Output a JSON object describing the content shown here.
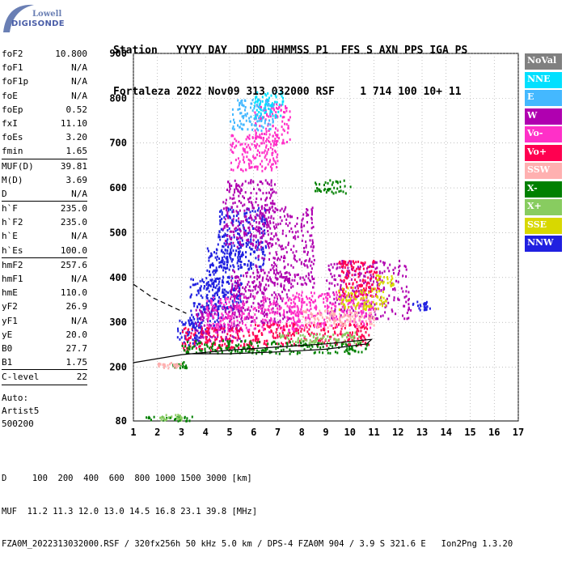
{
  "logo": {
    "line1": "Lowell",
    "line2": "DIGISONDE"
  },
  "header": {
    "line1": "Station   YYYY DAY   DDD HHMMSS P1  FFS S AXN PPS IGA PS",
    "line2": "Fortaleza 2022 Nov09 313 032000 RSF    1 714 100 10+ 11"
  },
  "params": [
    {
      "label": "foF2",
      "value": "10.800"
    },
    {
      "label": "foF1",
      "value": "N/A"
    },
    {
      "label": "foF1p",
      "value": "N/A"
    },
    {
      "label": "foE",
      "value": "N/A"
    },
    {
      "label": "foEp",
      "value": "0.52"
    },
    {
      "label": "fxI",
      "value": "11.10"
    },
    {
      "label": "foEs",
      "value": "3.20"
    },
    {
      "label": "fmin",
      "value": "1.65"
    },
    {
      "sep": true
    },
    {
      "label": "MUF(D)",
      "value": "39.81"
    },
    {
      "label": "M(D)",
      "value": "3.69"
    },
    {
      "label": "D",
      "value": "N/A"
    },
    {
      "sep": true
    },
    {
      "label": "h`F",
      "value": "235.0"
    },
    {
      "label": "h`F2",
      "value": "235.0"
    },
    {
      "label": "h`E",
      "value": "N/A"
    },
    {
      "label": "h`Es",
      "value": "100.0"
    },
    {
      "sep": true
    },
    {
      "label": "hmF2",
      "value": "257.6"
    },
    {
      "label": "hmF1",
      "value": "N/A"
    },
    {
      "label": "hmE",
      "value": "110.0"
    },
    {
      "label": "yF2",
      "value": "26.9"
    },
    {
      "label": "yF1",
      "value": "N/A"
    },
    {
      "label": "yE",
      "value": "20.0"
    },
    {
      "label": "B0",
      "value": "27.7"
    },
    {
      "label": "B1",
      "value": "1.75"
    },
    {
      "sep": true
    },
    {
      "label": "C-level",
      "value": "22"
    },
    {
      "sep": true
    }
  ],
  "auto": {
    "line1": "Auto:",
    "line2": "Artist5",
    "line3": "500200"
  },
  "legend": [
    {
      "label": "NoVal",
      "color": "#808080"
    },
    {
      "label": "NNE",
      "color": "#00e0ff"
    },
    {
      "label": "E",
      "color": "#44b8ff"
    },
    {
      "label": "W",
      "color": "#b000b0"
    },
    {
      "label": "Vo-",
      "color": "#ff30c8"
    },
    {
      "label": "Vo+",
      "color": "#ff0050"
    },
    {
      "label": "SSW",
      "color": "#ffb0b0"
    },
    {
      "label": "X-",
      "color": "#008000"
    },
    {
      "label": "X+",
      "color": "#88cc60"
    },
    {
      "label": "SSE",
      "color": "#d8d800"
    },
    {
      "label": "NNW",
      "color": "#2020e0"
    }
  ],
  "footer": {
    "line1": "D     100  200  400  600  800 1000 1500 3000 [km]",
    "line2": "MUF  11.2 11.3 12.0 13.0 14.5 16.8 23.1 39.8 [MHz]",
    "line3": "FZA0M_2022313032000.RSF / 320fx256h 50 kHz 5.0 km / DPS-4 FZA0M 904 / 3.9 S 321.6 E   Ion2Png 1.3.20"
  },
  "chart_data": {
    "type": "scatter",
    "x_ticks": [
      "1",
      "2",
      "3",
      "4",
      "5",
      "6",
      "7",
      "8",
      "9",
      "10",
      "11",
      "12",
      "13",
      "14",
      "15",
      "16",
      "17"
    ],
    "y_ticks": [
      "200",
      "300",
      "400",
      "500",
      "600",
      "700",
      "800",
      "900"
    ],
    "y_bottom_label": "80",
    "xlim": [
      1,
      17
    ],
    "ylim": [
      80,
      900
    ],
    "grid": true,
    "legend_position": "right",
    "series": [
      {
        "name": "NNW",
        "color": "#2020e0",
        "clusters": [
          {
            "x": [
              2.8,
              3.9
            ],
            "y": [
              250,
              310
            ]
          },
          {
            "x": [
              3.3,
              4.8
            ],
            "y": [
              280,
              400
            ]
          },
          {
            "x": [
              4,
              5.5
            ],
            "y": [
              330,
              480
            ]
          },
          {
            "x": [
              4.5,
              6.5
            ],
            "y": [
              420,
              560
            ]
          },
          {
            "x": [
              12.5,
              13.3
            ],
            "y": [
              330,
              350
            ]
          }
        ]
      },
      {
        "name": "W",
        "color": "#b000b0",
        "clusters": [
          {
            "x": [
              3.5,
              5.5
            ],
            "y": [
              260,
              340
            ]
          },
          {
            "x": [
              5,
              7.5
            ],
            "y": [
              300,
              420
            ]
          },
          {
            "x": [
              6,
              8.5
            ],
            "y": [
              380,
              560
            ]
          },
          {
            "x": [
              9,
              12.5
            ],
            "y": [
              310,
              440
            ]
          },
          {
            "x": [
              4.7,
              6.9
            ],
            "y": [
              470,
              620
            ]
          }
        ]
      },
      {
        "name": "Vo-",
        "color": "#ff30c8",
        "clusters": [
          {
            "x": [
              4,
              8
            ],
            "y": [
              280,
              360
            ]
          },
          {
            "x": [
              7.5,
              11
            ],
            "y": [
              290,
              370
            ]
          },
          {
            "x": [
              5,
              7
            ],
            "y": [
              640,
              720
            ]
          },
          {
            "x": [
              6,
              7.5
            ],
            "y": [
              700,
              790
            ]
          }
        ]
      },
      {
        "name": "Vo+",
        "color": "#ff0050",
        "clusters": [
          {
            "x": [
              3,
              6
            ],
            "y": [
              240,
              290
            ]
          },
          {
            "x": [
              6,
              10.8
            ],
            "y": [
              250,
              300
            ]
          },
          {
            "x": [
              9.5,
              11.2
            ],
            "y": [
              360,
              440
            ]
          }
        ]
      },
      {
        "name": "X-",
        "color": "#008000",
        "clusters": [
          {
            "x": [
              3,
              10.8
            ],
            "y": [
              232,
              262
            ]
          },
          {
            "x": [
              1.5,
              3.5
            ],
            "y": [
              82,
              92
            ]
          },
          {
            "x": [
              2.6,
              3.2
            ],
            "y": [
              200,
              215
            ]
          },
          {
            "x": [
              8.5,
              10
            ],
            "y": [
              590,
              620
            ]
          }
        ]
      },
      {
        "name": "X+",
        "color": "#88cc60",
        "clusters": [
          {
            "x": [
              7,
              10.5
            ],
            "y": [
              255,
              280
            ]
          },
          {
            "x": [
              2,
              3
            ],
            "y": [
              84,
              96
            ]
          }
        ]
      },
      {
        "name": "SSE",
        "color": "#d8d800",
        "clusters": [
          {
            "x": [
              9.5,
              11.5
            ],
            "y": [
              330,
              380
            ]
          },
          {
            "x": [
              11,
              11.8
            ],
            "y": [
              380,
              410
            ]
          }
        ]
      },
      {
        "name": "SSW",
        "color": "#ffb0b0",
        "clusters": [
          {
            "x": [
              8,
              11
            ],
            "y": [
              290,
              330
            ]
          },
          {
            "x": [
              2,
              3
            ],
            "y": [
              200,
              212
            ]
          }
        ]
      },
      {
        "name": "E",
        "color": "#44b8ff",
        "clusters": [
          {
            "x": [
              5,
              6.8
            ],
            "y": [
              730,
              800
            ]
          }
        ]
      },
      {
        "name": "NNE",
        "color": "#00e0ff",
        "clusters": [
          {
            "x": [
              6,
              7.2
            ],
            "y": [
              760,
              820
            ]
          }
        ]
      }
    ],
    "trace_x_curve": {
      "points": [
        [
          1,
          210
        ],
        [
          3,
          228
        ],
        [
          5,
          238
        ],
        [
          7,
          245
        ],
        [
          9,
          252
        ],
        [
          10.5,
          260
        ],
        [
          10.9,
          262
        ],
        [
          10.7,
          252
        ],
        [
          9,
          240
        ],
        [
          7,
          234
        ],
        [
          5,
          230
        ],
        [
          3.2,
          230
        ]
      ]
    },
    "trace_dashed": {
      "points": [
        [
          1,
          385
        ],
        [
          1.8,
          355
        ],
        [
          2.8,
          330
        ],
        [
          3.2,
          320
        ]
      ]
    }
  }
}
